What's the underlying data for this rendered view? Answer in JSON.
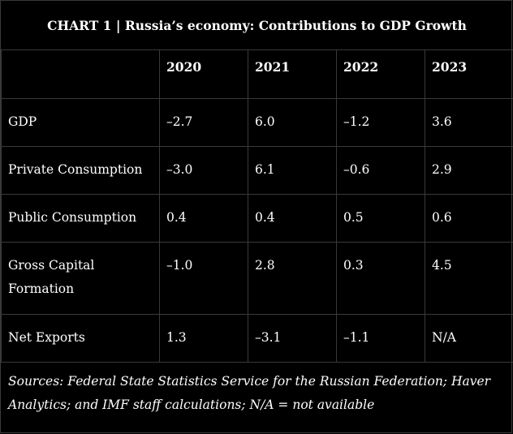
{
  "chart_data": {
    "type": "table",
    "title": "CHART 1 | Russia’s economy: Contributions to GDP Growth",
    "columns": [
      "",
      "2020",
      "2021",
      "2022",
      "2023"
    ],
    "rows": [
      {
        "label": "GDP",
        "values": [
          "–2.7",
          "6.0",
          "–1.2",
          "3.6"
        ]
      },
      {
        "label": "Private Consumption",
        "values": [
          "–3.0",
          "6.1",
          "–0.6",
          "2.9"
        ]
      },
      {
        "label": "Public Consumption",
        "values": [
          "0.4",
          "0.4",
          "0.5",
          "0.6"
        ]
      },
      {
        "label": "Gross Capital Formation",
        "values": [
          "–1.0",
          "2.8",
          "0.3",
          "4.5"
        ]
      },
      {
        "label": "Net Exports",
        "values": [
          "1.3",
          "–3.1",
          "–1.1",
          "N/A"
        ]
      }
    ],
    "source": "Sources: Federal State Statistics Service for the Russian Federation; Haver Analytics; and IMF staff calculations; N/A = not available"
  }
}
